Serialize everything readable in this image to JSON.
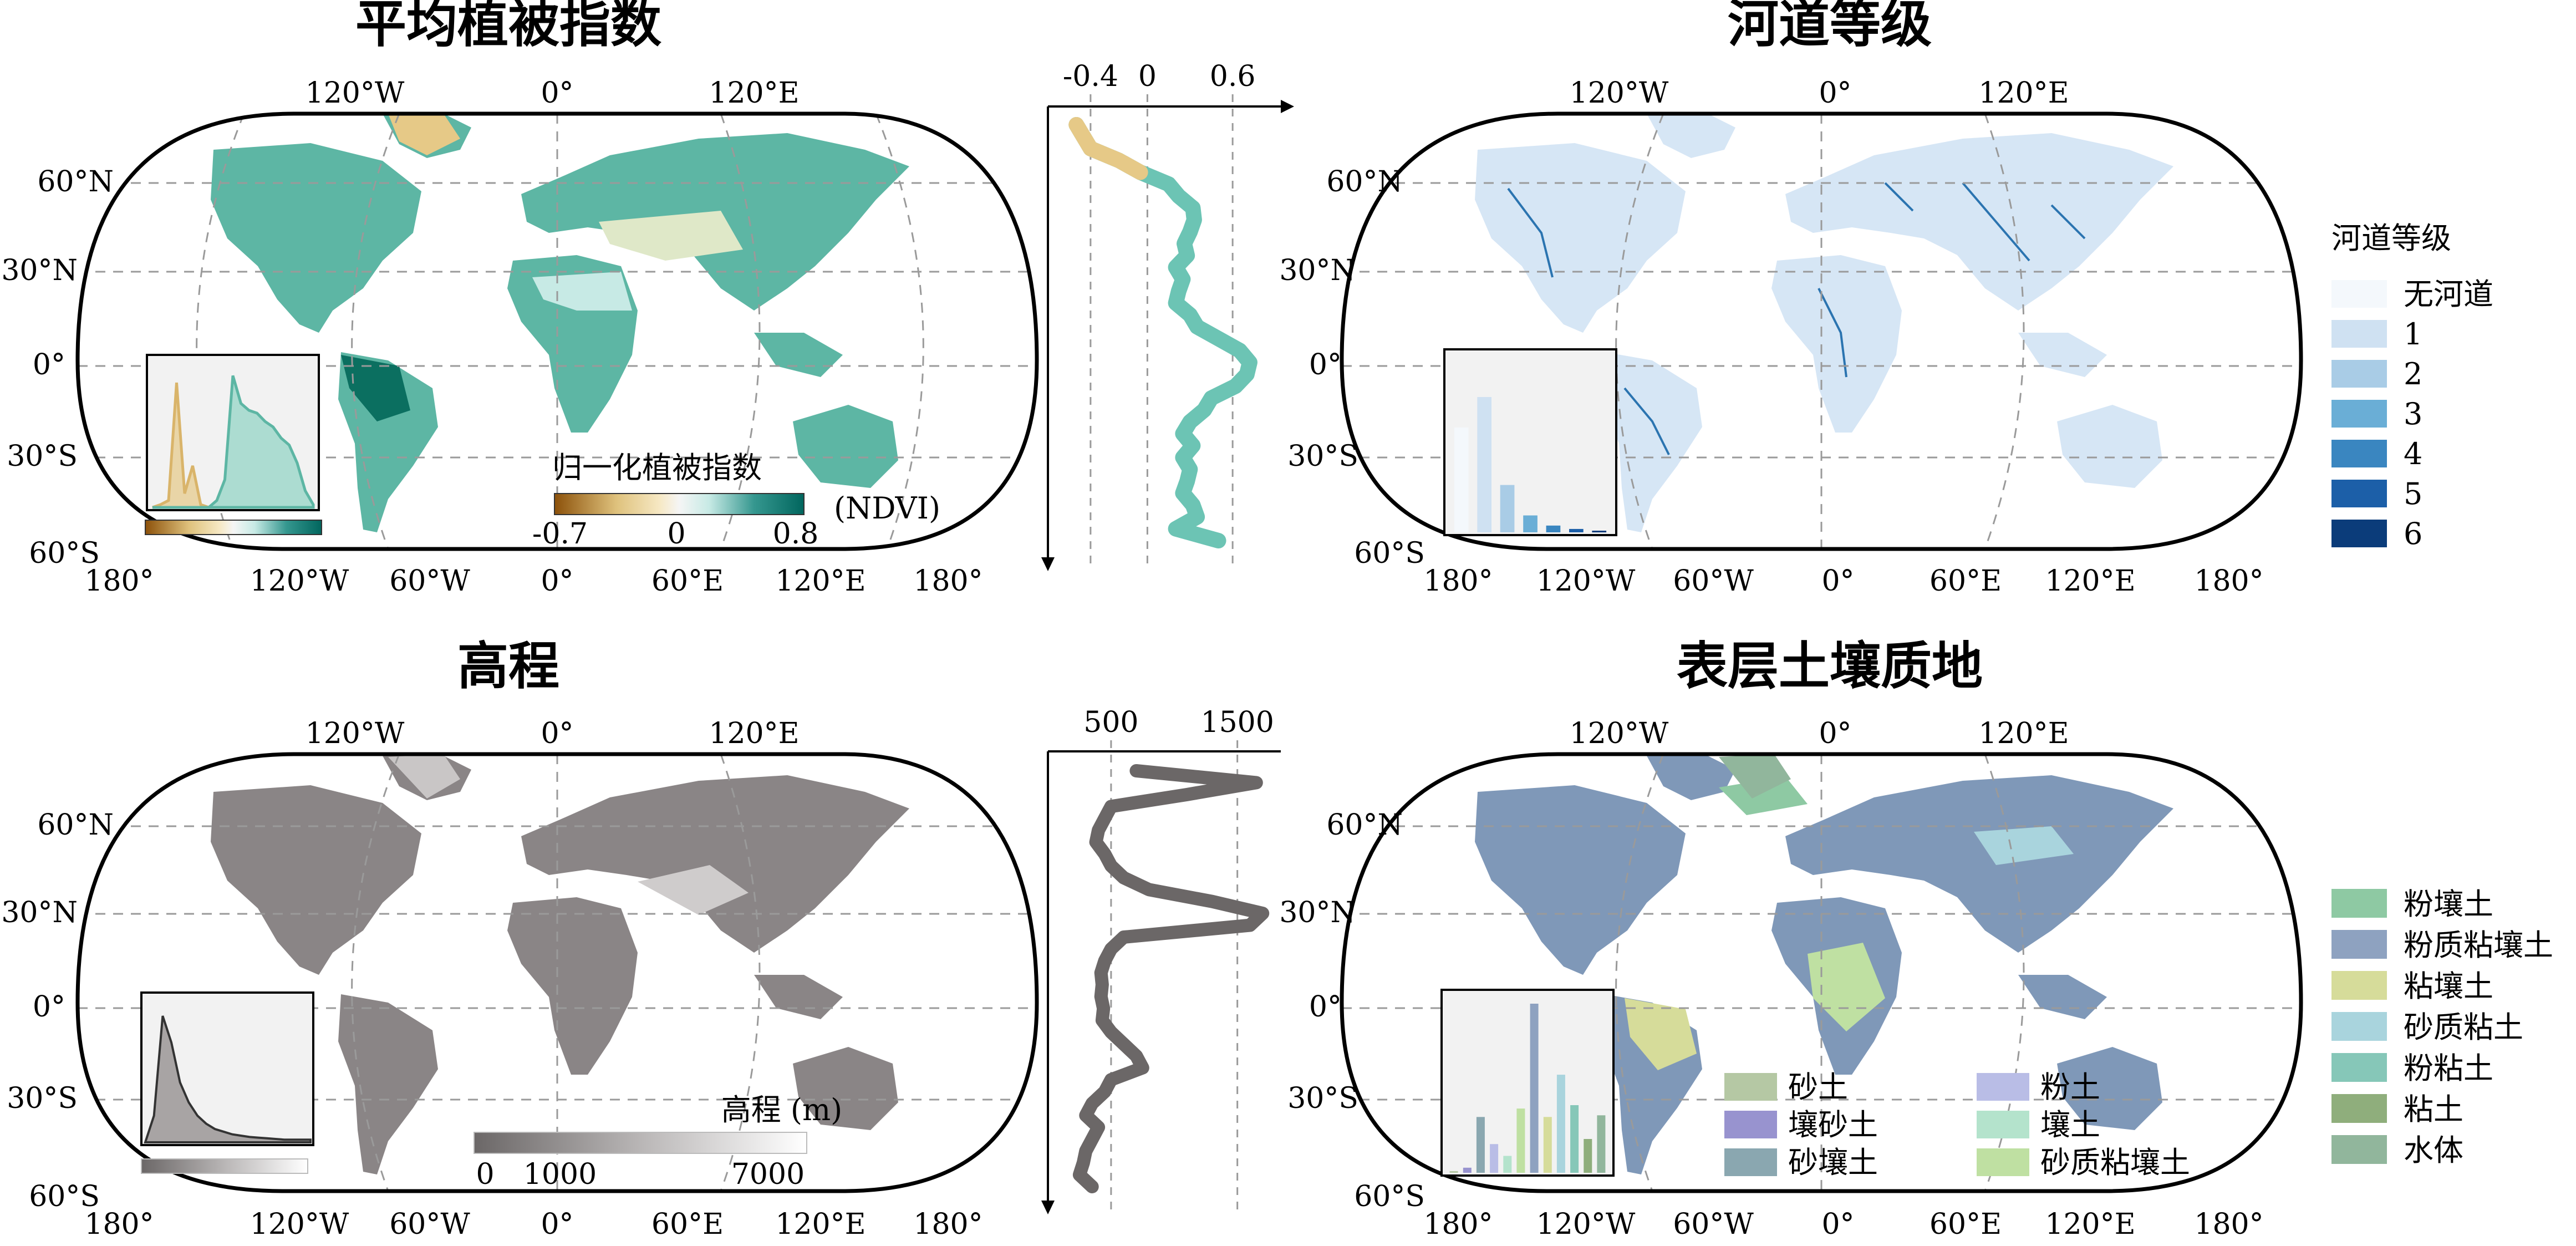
{
  "colors": {
    "ndvi_ramp": [
      "#8c510a",
      "#bf812d",
      "#dfc27d",
      "#f6e8c3",
      "#f5f5f5",
      "#c7eae5",
      "#80cdc1",
      "#35978f",
      "#01665e"
    ],
    "ndvi_profile": "#6cc4b4",
    "ndvi_profile_low": "#e6c987",
    "ndvi_land": "#5db6a4",
    "river_land": "#d6e6f5",
    "river_lines": "#2b74b0",
    "elev_land": "#8a8586",
    "elev_profile": "#6b6767",
    "soil_land": "#7f98b8",
    "inset_bg": "#f2f2f2",
    "grid": "#9a9a9a"
  },
  "map_ticks": {
    "top": [
      "120°W",
      "0°",
      "120°E"
    ],
    "bottom": [
      "180°",
      "120°W",
      "60°W",
      "0°",
      "60°E",
      "120°E",
      "180°"
    ],
    "left": [
      "60°N",
      "30°N",
      "0°",
      "30°S",
      "60°S"
    ]
  },
  "chart_data": [
    {
      "type": "map",
      "title": "平均植被指数",
      "colorbar": {
        "title": "归一化植被指数",
        "unit": "(NDVI)",
        "min_label": "-0.7",
        "mid_label": "0",
        "max_label": "0.8",
        "range": [
          -0.7,
          0.8
        ]
      },
      "inset": {
        "type": "area",
        "series": [
          {
            "values": [
              0,
              0.02,
              0.05,
              0.9,
              0.1,
              0.3,
              0.02,
              0,
              0,
              0,
              0,
              0,
              0,
              0,
              0,
              0,
              0,
              0,
              0,
              0,
              0
            ]
          },
          {
            "values": [
              0,
              0,
              0,
              0,
              0,
              0,
              0,
              0,
              0.05,
              0.2,
              0.95,
              0.75,
              0.7,
              0.68,
              0.62,
              0.58,
              0.5,
              0.45,
              0.32,
              0.12,
              0.02
            ]
          }
        ]
      }
    },
    {
      "type": "line",
      "panel": "ndvi-latitude-profile",
      "xticks": [
        "-0.4",
        "0",
        "0.6"
      ],
      "xlim": [
        -0.7,
        0.9
      ],
      "lat": [
        84,
        80,
        76,
        72,
        68,
        64,
        60,
        56,
        52,
        48,
        44,
        40,
        36,
        32,
        28,
        24,
        20,
        16,
        12,
        8,
        4,
        0,
        -4,
        -8,
        -12,
        -16,
        -20,
        -24,
        -28,
        -32,
        -36,
        -40,
        -44,
        -48,
        -52,
        -56
      ],
      "values": [
        -0.5,
        -0.45,
        -0.4,
        -0.2,
        -0.05,
        0.15,
        0.22,
        0.32,
        0.33,
        0.3,
        0.26,
        0.28,
        0.2,
        0.25,
        0.22,
        0.2,
        0.3,
        0.35,
        0.5,
        0.65,
        0.72,
        0.7,
        0.62,
        0.45,
        0.4,
        0.3,
        0.25,
        0.32,
        0.25,
        0.3,
        0.28,
        0.25,
        0.32,
        0.35,
        0.2,
        0.5
      ]
    },
    {
      "type": "map",
      "title": "河道等级",
      "legend": {
        "title": "河道等级",
        "items": [
          {
            "label": "无河道",
            "color": "#f4f8fc"
          },
          {
            "label": "1",
            "color": "#cfe1f2"
          },
          {
            "label": "2",
            "color": "#a9cce6"
          },
          {
            "label": "3",
            "color": "#6aaed6"
          },
          {
            "label": "4",
            "color": "#3a86c0"
          },
          {
            "label": "5",
            "color": "#1c5fa8"
          },
          {
            "label": "6",
            "color": "#0b3c7a"
          }
        ]
      },
      "inset": {
        "type": "bar",
        "categories": [
          "无河道",
          "1",
          "2",
          "3",
          "4",
          "5",
          "6"
        ],
        "values": [
          0.62,
          0.8,
          0.28,
          0.1,
          0.04,
          0.02,
          0.01
        ]
      }
    },
    {
      "type": "map",
      "title": "高程",
      "colorbar": {
        "title": "高程 (m)",
        "min_label": "0",
        "mid_label": "1000",
        "max_label": "7000",
        "range": [
          0,
          7000
        ]
      },
      "inset": {
        "type": "area",
        "values": [
          0,
          0.2,
          0.95,
          0.75,
          0.45,
          0.3,
          0.2,
          0.14,
          0.1,
          0.08,
          0.06,
          0.05,
          0.04,
          0.035,
          0.03,
          0.025,
          0.02,
          0.02,
          0.02,
          0.02
        ]
      }
    },
    {
      "type": "line",
      "panel": "elevation-latitude-profile",
      "xticks": [
        "500",
        "1500"
      ],
      "xlim": [
        0,
        1800
      ],
      "lat": [
        84,
        80,
        76,
        72,
        68,
        64,
        60,
        56,
        52,
        48,
        44,
        40,
        36,
        32,
        28,
        24,
        20,
        16,
        12,
        8,
        4,
        0,
        -4,
        -8,
        -12,
        -16,
        -20,
        -24,
        -28,
        -32,
        -36,
        -40,
        -44,
        -48,
        -52,
        -56
      ],
      "values": [
        700,
        1650,
        1100,
        500,
        450,
        400,
        380,
        450,
        500,
        600,
        800,
        1300,
        1700,
        1600,
        600,
        500,
        450,
        420,
        430,
        420,
        440,
        430,
        500,
        600,
        700,
        750,
        500,
        450,
        350,
        300,
        400,
        350,
        300,
        280,
        250,
        350
      ]
    },
    {
      "type": "map",
      "title": "表层土壤质地",
      "legend": {
        "items": [
          {
            "label": "粉壤土",
            "color": "#8ec9a3"
          },
          {
            "label": "粉质粘壤土",
            "color": "#8ea2c0"
          },
          {
            "label": "粘壤土",
            "color": "#d6dc9a"
          },
          {
            "label": "砂质粘土",
            "color": "#a9d4dd"
          },
          {
            "label": "粉粘土",
            "color": "#86c7b8"
          },
          {
            "label": "粘土",
            "color": "#8fae7c"
          },
          {
            "label": "水体",
            "color": "#91b69c"
          }
        ]
      },
      "inner_legend": {
        "items": [
          {
            "label": "砂土",
            "color": "#b5c8a4"
          },
          {
            "label": "粉土",
            "color": "#b9bde6"
          },
          {
            "label": "壤砂土",
            "color": "#9893cf"
          },
          {
            "label": "壤土",
            "color": "#b4e3cc"
          },
          {
            "label": "砂壤土",
            "color": "#8aa7b0"
          },
          {
            "label": "砂质粘壤土",
            "color": "#bfe0a2"
          }
        ]
      },
      "inset": {
        "type": "bar",
        "categories": [
          "砂土",
          "壤砂土",
          "砂壤土",
          "粉土",
          "壤土",
          "砂质粘壤土",
          "粉质粘壤土",
          "粘壤土",
          "砂质粘土",
          "粉粘土",
          "粘土",
          "水体"
        ],
        "values": [
          0.01,
          0.03,
          0.33,
          0.17,
          0.1,
          0.38,
          1.0,
          0.33,
          0.58,
          0.4,
          0.2,
          0.34
        ],
        "colors": [
          "#b5c8a4",
          "#9893cf",
          "#8aa7b0",
          "#b9bde6",
          "#b4e3cc",
          "#bfe0a2",
          "#8ea2c0",
          "#d6dc9a",
          "#a9d4dd",
          "#86c7b8",
          "#8fae7c",
          "#91b69c"
        ]
      }
    }
  ]
}
